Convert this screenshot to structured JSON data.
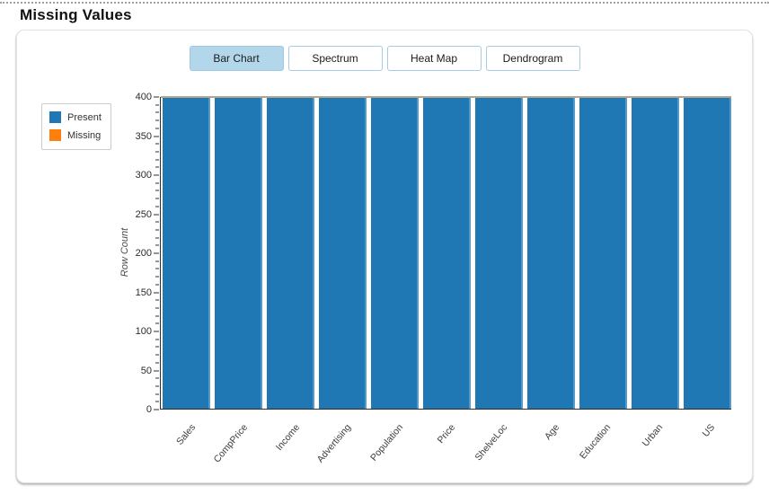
{
  "title": "Missing Values",
  "tabs": {
    "items": [
      {
        "label": "Bar Chart",
        "selected": true
      },
      {
        "label": "Spectrum",
        "selected": false
      },
      {
        "label": "Heat Map",
        "selected": false
      },
      {
        "label": "Dendrogram",
        "selected": false
      }
    ]
  },
  "legend": {
    "items": [
      {
        "label": "Present",
        "color": "#1f77b4"
      },
      {
        "label": "Missing",
        "color": "#ff7f0e"
      }
    ]
  },
  "chart_data": {
    "type": "bar",
    "stacked": true,
    "title": "Missing Values",
    "categories": [
      "Sales",
      "CompPrice",
      "Income",
      "Advertising",
      "Population",
      "Price",
      "ShelveLoc",
      "Age",
      "Education",
      "Urban",
      "US"
    ],
    "series": [
      {
        "name": "Present",
        "color": "#1f77b4",
        "values": [
          400,
          400,
          400,
          400,
          400,
          400,
          400,
          400,
          400,
          400,
          400
        ]
      },
      {
        "name": "Missing",
        "color": "#ff7f0e",
        "values": [
          0,
          0,
          0,
          0,
          0,
          0,
          0,
          0,
          0,
          0,
          0
        ]
      }
    ],
    "xlabel": "",
    "ylabel": "Row Count",
    "ylim": [
      0,
      400
    ],
    "ytick_major": 50,
    "ytick_minor": 10,
    "grid": false,
    "legend_position": "left"
  },
  "colors": {
    "selected_tab_bg": "#b2d6ea",
    "tab_border": "#a6cbe2",
    "bar_present": "#1f77b4",
    "bar_missing": "#ff7f0e",
    "plot_top_line": "#b3a68f",
    "axis": "#2b2b2b"
  }
}
